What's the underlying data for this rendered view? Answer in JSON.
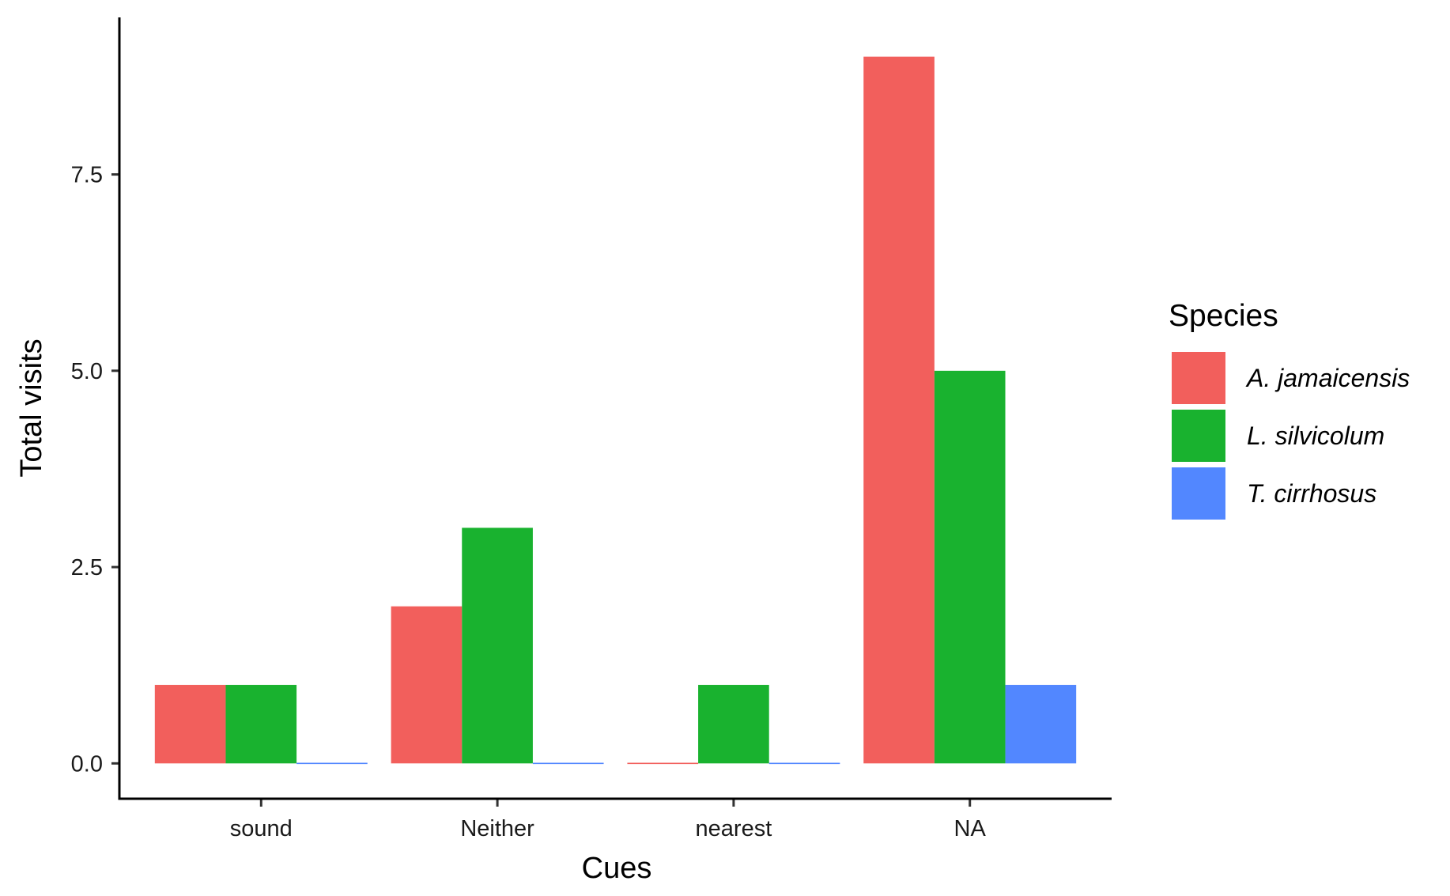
{
  "chart_data": {
    "type": "bar",
    "categories": [
      "sound",
      "Neither",
      "nearest",
      "NA"
    ],
    "series": [
      {
        "name": "A. jamaicensis",
        "values": [
          1,
          2,
          0,
          9
        ],
        "color": "#F25F5C"
      },
      {
        "name": "L. silvicolum",
        "values": [
          1,
          3,
          1,
          5
        ],
        "color": "#19B22F"
      },
      {
        "name": "T. cirrhosus",
        "values": [
          0,
          0,
          0,
          1
        ],
        "color": "#5287FF"
      }
    ],
    "xlabel": "Cues",
    "ylabel": "Total visits",
    "yticks": [
      0.0,
      2.5,
      5.0,
      7.5
    ],
    "ytick_labels": [
      "0.0",
      "2.5",
      "5.0",
      "7.5"
    ],
    "ylim": [
      -0.45,
      9.5
    ],
    "grid": false,
    "legend": {
      "title": "Species",
      "position": "right"
    }
  }
}
